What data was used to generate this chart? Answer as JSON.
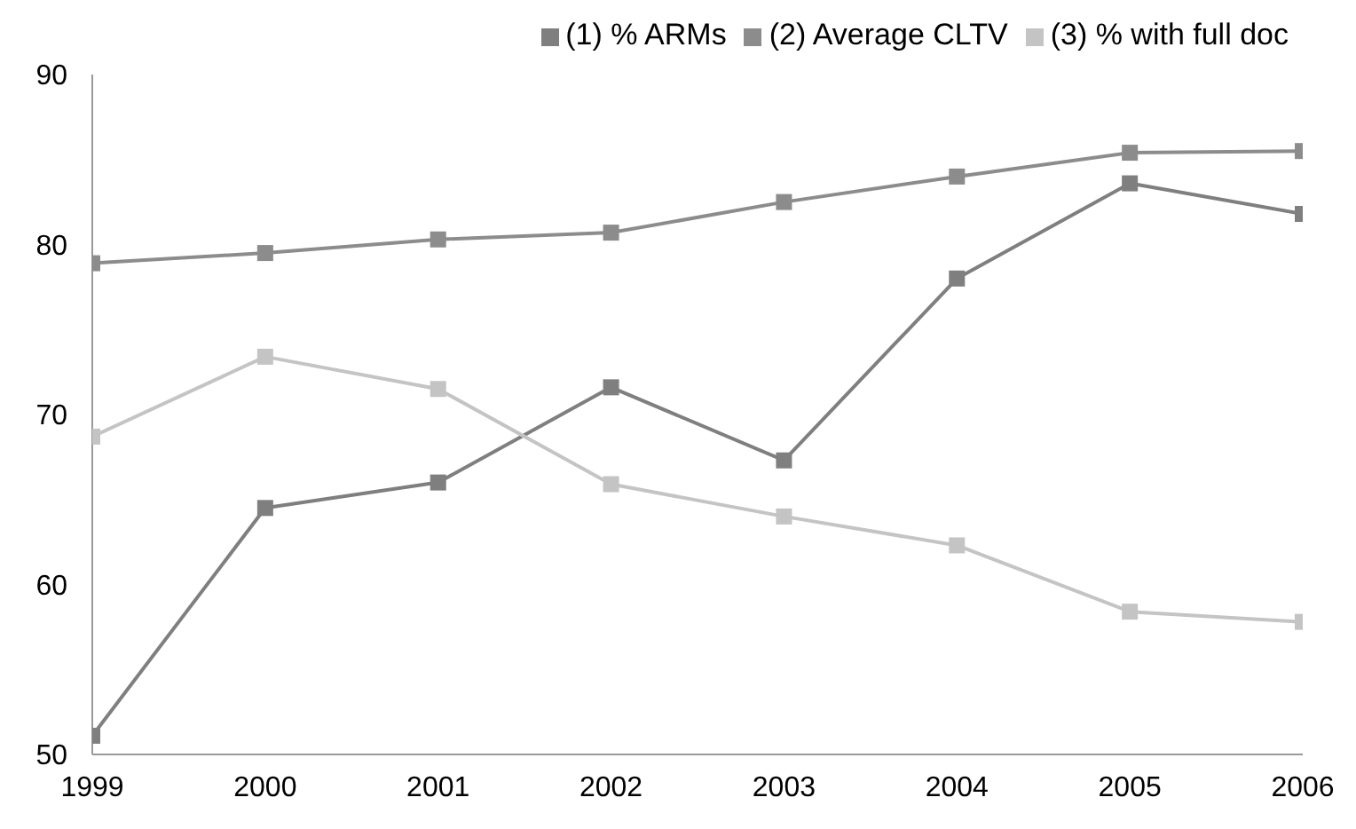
{
  "chart_data": {
    "type": "line",
    "x": [
      1999,
      2000,
      2001,
      2002,
      2003,
      2004,
      2005,
      2006
    ],
    "series": [
      {
        "name": "(1) % ARMs",
        "color": "#7f7f7f",
        "values": [
          51.1,
          64.5,
          66,
          71.6,
          67.3,
          78,
          83.6,
          81.8
        ]
      },
      {
        "name": "(2) Average CLTV",
        "color": "#8c8c8c",
        "values": [
          78.9,
          79.5,
          80.3,
          80.7,
          82.5,
          84,
          85.4,
          85.5
        ]
      },
      {
        "name": "(3) % with full doc",
        "color": "#c4c4c4",
        "values": [
          68.7,
          73.4,
          71.5,
          65.9,
          64,
          62.3,
          58.4,
          57.8
        ]
      }
    ],
    "xlim": [
      1999,
      2006
    ],
    "xticks": [
      1999,
      2000,
      2001,
      2002,
      2003,
      2004,
      2005,
      2006
    ],
    "ylim": [
      50,
      90
    ],
    "yticks": [
      50,
      60,
      70,
      80,
      90
    ],
    "grid": false,
    "legend": "top right",
    "marker": "square",
    "line_style": "solid"
  }
}
